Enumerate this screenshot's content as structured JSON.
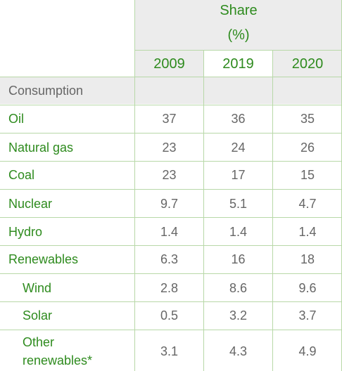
{
  "header": {
    "share_line1": "Share",
    "share_line2": "(%)",
    "years": [
      "2009",
      "2019",
      "2020"
    ]
  },
  "section_label": "Consumption",
  "rows": [
    {
      "label": "Oil",
      "values": [
        "37",
        "36",
        "35"
      ]
    },
    {
      "label": "Natural gas",
      "values": [
        "23",
        "24",
        "26"
      ]
    },
    {
      "label": "Coal",
      "values": [
        "23",
        "17",
        "15"
      ]
    },
    {
      "label": "Nuclear",
      "values": [
        "9.7",
        "5.1",
        "4.7"
      ]
    },
    {
      "label": "Hydro",
      "values": [
        "1.4",
        "1.4",
        "1.4"
      ]
    },
    {
      "label": "Renewables",
      "values": [
        "6.3",
        "16",
        "18"
      ]
    },
    {
      "label": "Wind",
      "values": [
        "2.8",
        "8.6",
        "9.6"
      ]
    },
    {
      "label": "Solar",
      "values": [
        "0.5",
        "3.2",
        "3.7"
      ]
    },
    {
      "label_line1": "Other",
      "label_line2": "renewables*",
      "values": [
        "3.1",
        "4.3",
        "4.9"
      ]
    }
  ],
  "colors": {
    "accent_green": "#2e8b1e",
    "header_gray": "#ececec",
    "text_gray": "#666666",
    "rule": "#b8d8a8"
  }
}
